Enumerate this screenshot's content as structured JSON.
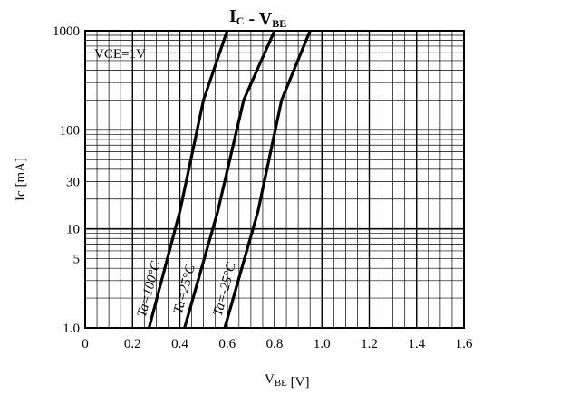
{
  "chart_data": {
    "type": "line",
    "title": "I",
    "title_sub": "C",
    "title_rest": " - V",
    "title_rest_sub": "BE",
    "xlabel": "V",
    "xlabel_sub": "BE",
    "xlabel_unit": "[V]",
    "ylabel": "Ic [mA]",
    "condition": "VCE=1V",
    "xlim": [
      0,
      1.6
    ],
    "ylim": [
      1,
      1000
    ],
    "yscale": "log",
    "grid": true,
    "x_ticks": [
      "0",
      "0.2",
      "0.4",
      "0.6",
      "0.8",
      "1.0",
      "1.2",
      "1.4",
      "1.6"
    ],
    "y_ticks": [
      {
        "value": 1,
        "label": "1.0"
      },
      {
        "value": 5,
        "label": "5"
      },
      {
        "value": 10,
        "label": "10"
      },
      {
        "value": 30,
        "label": "30"
      },
      {
        "value": 100,
        "label": "100"
      },
      {
        "value": 1000,
        "label": "1000"
      }
    ],
    "series": [
      {
        "name": "Ta=100°C",
        "x": [
          0.27,
          0.4,
          0.5,
          0.6
        ],
        "y": [
          1,
          15,
          200,
          1000
        ]
      },
      {
        "name": "Ta=25°C",
        "x": [
          0.42,
          0.56,
          0.67,
          0.8
        ],
        "y": [
          1,
          15,
          200,
          1000
        ]
      },
      {
        "name": "Ta=-25°C",
        "x": [
          0.59,
          0.73,
          0.83,
          0.95
        ],
        "y": [
          1,
          15,
          200,
          1000
        ]
      }
    ]
  }
}
